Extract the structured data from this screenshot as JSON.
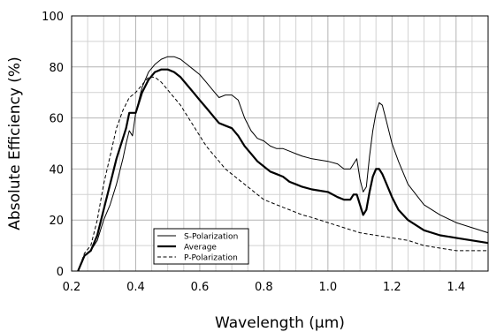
{
  "chart_data": {
    "type": "line",
    "xlabel": "Wavelength (µm)",
    "ylabel": "Absolute Efficiency (%)",
    "xlim": [
      0.2,
      1.5
    ],
    "ylim": [
      0,
      100
    ],
    "xticks": [
      "0.2",
      "0.4",
      "0.6",
      "0.8",
      "1.0",
      "1.2",
      "1.4"
    ],
    "yticks": [
      "0",
      "20",
      "40",
      "60",
      "80",
      "100"
    ],
    "grid": true,
    "minor_grid": true,
    "legend_position": "bottom-left",
    "series": [
      {
        "name": "S-Polarization",
        "style": "thin",
        "x": [
          0.22,
          0.24,
          0.26,
          0.28,
          0.3,
          0.32,
          0.34,
          0.36,
          0.37,
          0.38,
          0.39,
          0.4,
          0.42,
          0.44,
          0.46,
          0.48,
          0.5,
          0.52,
          0.54,
          0.56,
          0.58,
          0.6,
          0.62,
          0.64,
          0.66,
          0.68,
          0.7,
          0.72,
          0.74,
          0.76,
          0.78,
          0.8,
          0.82,
          0.84,
          0.86,
          0.88,
          0.9,
          0.92,
          0.95,
          1.0,
          1.03,
          1.05,
          1.07,
          1.08,
          1.09,
          1.1,
          1.11,
          1.12,
          1.13,
          1.14,
          1.15,
          1.16,
          1.17,
          1.18,
          1.2,
          1.22,
          1.25,
          1.3,
          1.35,
          1.4,
          1.45,
          1.5
        ],
        "y": [
          0,
          6,
          8,
          12,
          20,
          26,
          34,
          44,
          50,
          55,
          53,
          62,
          72,
          78,
          81,
          83,
          84,
          84,
          83,
          81,
          79,
          77,
          74,
          71,
          68,
          69,
          69,
          67,
          60,
          55,
          52,
          51,
          49,
          48,
          48,
          47,
          46,
          45,
          44,
          43,
          42,
          40,
          40,
          42,
          44,
          36,
          31,
          33,
          45,
          55,
          62,
          66,
          65,
          60,
          50,
          43,
          34,
          26,
          22,
          19,
          17,
          15
        ]
      },
      {
        "name": "Average",
        "style": "thick",
        "x": [
          0.22,
          0.24,
          0.26,
          0.28,
          0.3,
          0.32,
          0.34,
          0.36,
          0.37,
          0.38,
          0.39,
          0.4,
          0.42,
          0.44,
          0.46,
          0.48,
          0.5,
          0.52,
          0.54,
          0.56,
          0.58,
          0.6,
          0.62,
          0.64,
          0.66,
          0.68,
          0.7,
          0.72,
          0.74,
          0.76,
          0.78,
          0.8,
          0.82,
          0.84,
          0.86,
          0.88,
          0.9,
          0.92,
          0.95,
          1.0,
          1.03,
          1.05,
          1.07,
          1.08,
          1.09,
          1.1,
          1.11,
          1.12,
          1.13,
          1.14,
          1.15,
          1.16,
          1.17,
          1.18,
          1.2,
          1.22,
          1.25,
          1.3,
          1.35,
          1.4,
          1.45,
          1.5
        ],
        "y": [
          0,
          6,
          8,
          14,
          24,
          34,
          44,
          52,
          56,
          62,
          62,
          62,
          70,
          75,
          78,
          79,
          79,
          78,
          76,
          73,
          70,
          67,
          64,
          61,
          58,
          57,
          56,
          53,
          49,
          46,
          43,
          41,
          39,
          38,
          37,
          35,
          34,
          33,
          32,
          31,
          29,
          28,
          28,
          30,
          30,
          26,
          22,
          24,
          31,
          37,
          40,
          40,
          38,
          35,
          29,
          24,
          20,
          16,
          14,
          13,
          12,
          11
        ]
      },
      {
        "name": "P-Polarization",
        "style": "dashed",
        "x": [
          0.22,
          0.24,
          0.26,
          0.28,
          0.3,
          0.32,
          0.34,
          0.36,
          0.38,
          0.4,
          0.42,
          0.44,
          0.46,
          0.48,
          0.5,
          0.52,
          0.54,
          0.56,
          0.58,
          0.6,
          0.62,
          0.64,
          0.66,
          0.68,
          0.7,
          0.72,
          0.74,
          0.76,
          0.78,
          0.8,
          0.82,
          0.84,
          0.86,
          0.88,
          0.9,
          0.92,
          0.95,
          1.0,
          1.05,
          1.1,
          1.15,
          1.2,
          1.25,
          1.3,
          1.35,
          1.4,
          1.45,
          1.5
        ],
        "y": [
          0,
          7,
          10,
          20,
          34,
          45,
          56,
          63,
          68,
          70,
          73,
          76,
          76,
          74,
          71,
          68,
          65,
          61,
          57,
          53,
          49,
          46,
          43,
          40,
          38,
          36,
          34,
          32,
          30,
          28,
          27,
          26,
          25,
          24,
          23,
          22,
          21,
          19,
          17,
          15,
          14,
          13,
          12,
          10,
          9,
          8,
          8,
          8
        ]
      }
    ]
  }
}
